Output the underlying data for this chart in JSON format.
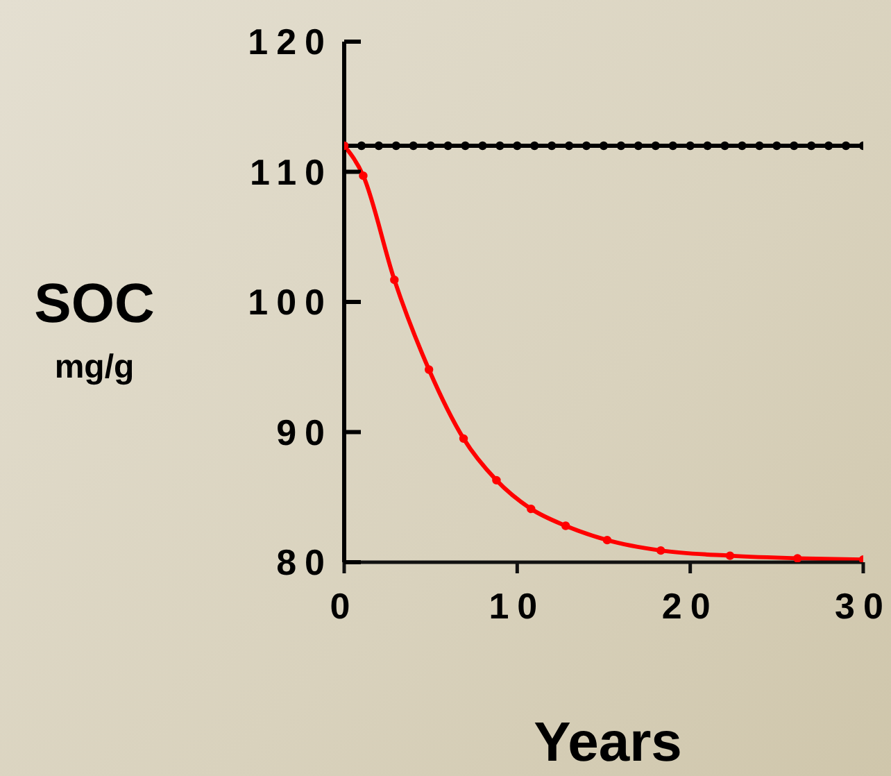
{
  "chart_data": {
    "type": "line",
    "xlabel": "Years",
    "ylabel": "SOC mg/g",
    "xlim": [
      0,
      30
    ],
    "xticks": [
      0,
      10,
      20,
      30
    ],
    "ylim": [
      80,
      120
    ],
    "yticks": [
      80,
      90,
      100,
      110,
      120
    ],
    "marker": "circle",
    "line_style": "solid",
    "series": [
      {
        "color": "#000000",
        "x": [
          0,
          1,
          2,
          3,
          4,
          5,
          6,
          7,
          8,
          9,
          10,
          11,
          12,
          13,
          14,
          15,
          16,
          17,
          18,
          19,
          20,
          21,
          22,
          23,
          24,
          25,
          26,
          27,
          28,
          29,
          30
        ],
        "values": [
          112,
          112,
          112,
          112,
          112,
          112,
          112,
          112,
          112,
          112,
          112,
          112,
          112,
          112,
          112,
          112,
          112,
          112,
          112,
          112,
          112,
          112,
          112,
          112,
          112,
          112,
          112,
          112,
          112,
          112,
          112
        ]
      },
      {
        "color": "#ff0000",
        "x": [
          0,
          1.1,
          2.9,
          4.9,
          6.9,
          8.8,
          10.8,
          12.8,
          15.2,
          18.3,
          22.3,
          26.2,
          30
        ],
        "values": [
          112,
          109.7,
          101.7,
          94.8,
          89.5,
          86.3,
          84.1,
          82.8,
          81.7,
          80.9,
          80.5,
          80.3,
          80.2
        ]
      }
    ]
  }
}
